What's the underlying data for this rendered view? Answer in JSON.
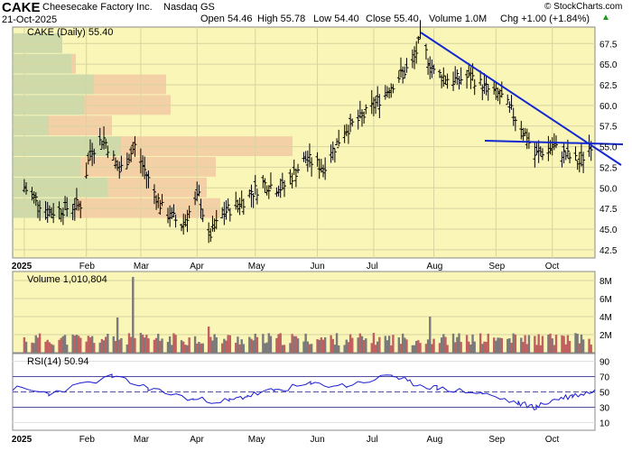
{
  "header": {
    "symbol": "CAKE",
    "company": "Cheesecake Factory Inc.",
    "exchange": "Nasdaq GS",
    "date": "21-Oct-2025",
    "open": "Open 54.46",
    "high": "High 55.78",
    "low": "Low 54.40",
    "close": "Close 55.40",
    "volume": "Volume 1.0M",
    "change": "Chg +1.00 (+1.84%)",
    "change_arrow": "▲",
    "source": "© StockCharts.com"
  },
  "price_panel": {
    "legend": "CAKE (Daily) 55.40",
    "y_ticks": [
      "67.5",
      "65.0",
      "62.5",
      "60.0",
      "57.5",
      "55.0",
      "52.5",
      "50.0",
      "47.5",
      "45.0",
      "42.5"
    ],
    "y_values": [
      67.5,
      65.0,
      62.5,
      60.0,
      57.5,
      55.0,
      52.5,
      50.0,
      47.5,
      45.0,
      42.5
    ],
    "x_labels": [
      "2025",
      "Feb",
      "Mar",
      "Apr",
      "May",
      "Jun",
      "Jul",
      "Aug",
      "Sep",
      "Oct"
    ]
  },
  "volume_panel": {
    "legend": "Volume 1,010,804",
    "y_ticks": [
      "8M",
      "6M",
      "4M",
      "2M"
    ],
    "y_values": [
      8,
      6,
      4,
      2
    ]
  },
  "rsi_panel": {
    "legend": "RSI(14) 50.94",
    "y_ticks": [
      "90",
      "70",
      "50",
      "30",
      "10"
    ],
    "y_values": [
      90,
      70,
      50,
      30,
      10
    ]
  },
  "bottom_axis": {
    "x_labels": [
      "2025",
      "Feb",
      "Mar",
      "Apr",
      "May",
      "Jun",
      "Jul",
      "Aug",
      "Sep",
      "Oct"
    ]
  },
  "chart_data": {
    "type": "line",
    "series": [
      {
        "name": "CAKE (Daily)",
        "x": [
          "2025-01-02",
          "2025-01-15",
          "2025-01-31",
          "2025-02-05",
          "2025-02-12",
          "2025-02-20",
          "2025-02-28",
          "2025-03-07",
          "2025-03-14",
          "2025-03-24",
          "2025-04-02",
          "2025-04-07",
          "2025-04-15",
          "2025-04-25",
          "2025-05-05",
          "2025-05-15",
          "2025-05-27",
          "2025-06-05",
          "2025-06-16",
          "2025-06-25",
          "2025-07-03",
          "2025-07-14",
          "2025-07-21",
          "2025-07-25",
          "2025-08-01",
          "2025-08-11",
          "2025-08-20",
          "2025-08-28",
          "2025-09-05",
          "2025-09-15",
          "2025-09-22",
          "2025-10-01",
          "2025-10-08",
          "2025-10-15",
          "2025-10-21"
        ],
        "values": [
          50.0,
          47.0,
          48.0,
          54.5,
          56.0,
          52.0,
          55.0,
          51.0,
          47.5,
          45.5,
          49.0,
          44.0,
          47.0,
          48.5,
          50.5,
          50.0,
          53.5,
          52.5,
          57.0,
          58.5,
          60.5,
          63.5,
          65.0,
          68.0,
          64.0,
          63.0,
          63.5,
          62.0,
          61.0,
          57.5,
          54.0,
          55.0,
          54.0,
          53.0,
          55.4
        ]
      }
    ],
    "ohlc_last": {
      "open": 54.46,
      "high": 55.78,
      "low": 54.4,
      "close": 55.4
    },
    "ylim": [
      41.5,
      69.5
    ],
    "volume_ylim": [
      0,
      9
    ],
    "rsi_ylim": [
      0,
      100
    ],
    "rsi_levels": [
      70,
      50,
      30
    ],
    "rsi_last": 50.94,
    "grid": true,
    "legend_position": "top-left",
    "colors": {
      "panel_bg": "#f9f6b8",
      "trend_line": "#1428d0",
      "rsi_line": "#1a1ad0",
      "vol_up": "#c06060",
      "vol_down": "#7a7a7a",
      "volume_by_price_up": "#b0c8a0",
      "volume_by_price_down": "#f0b89a"
    }
  }
}
